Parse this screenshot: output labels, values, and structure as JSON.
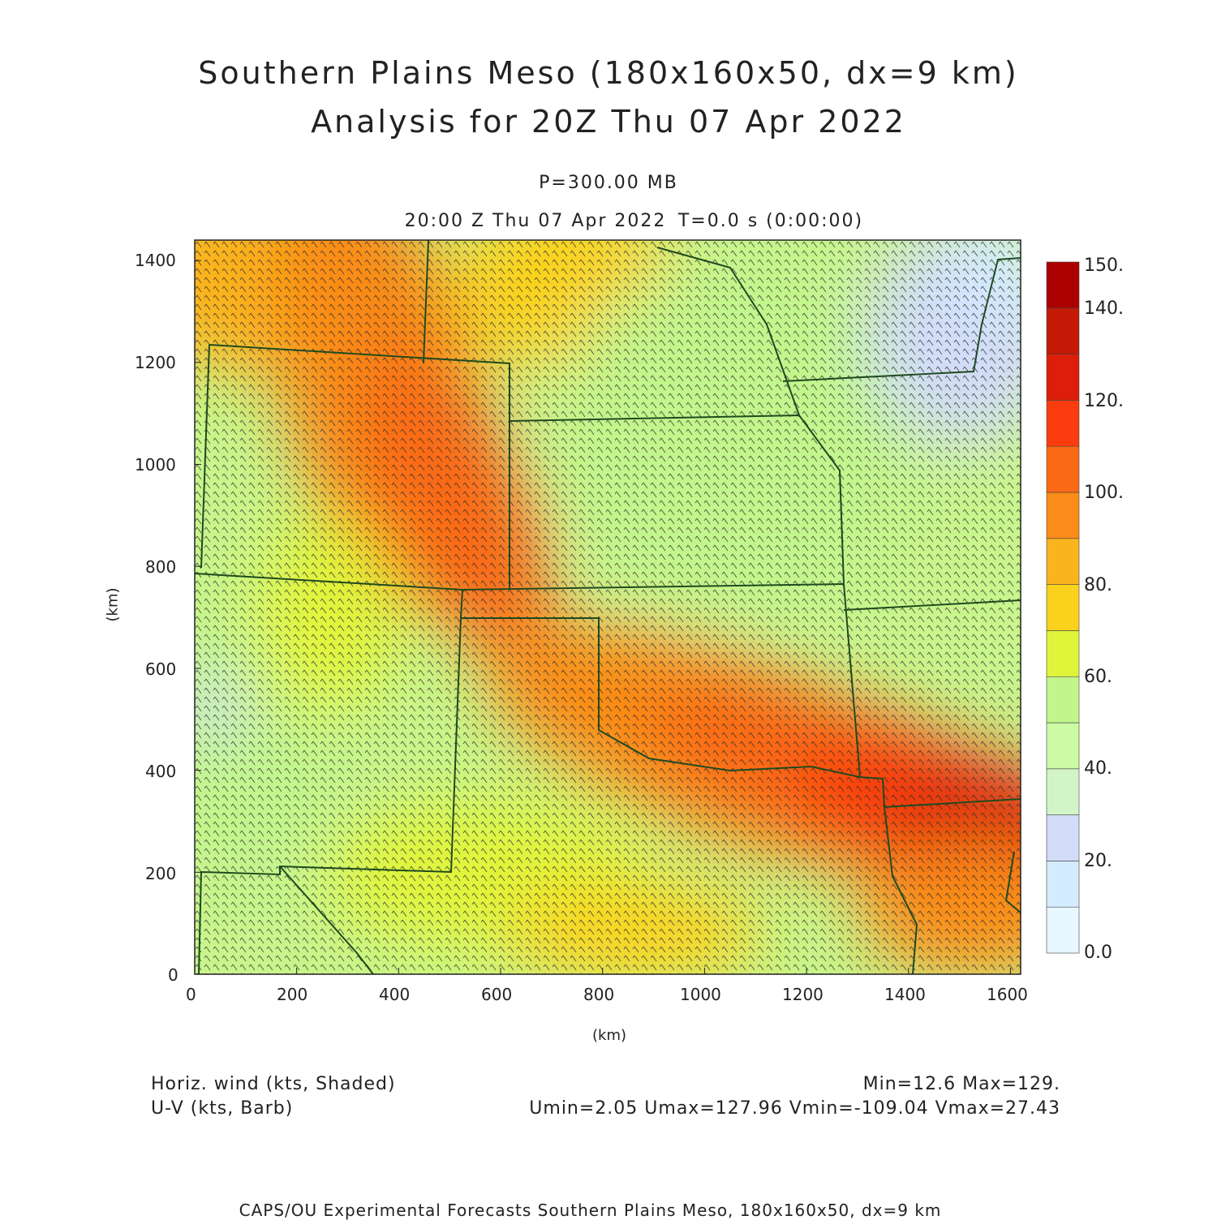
{
  "title": {
    "line1": "Southern Plains Meso (180x160x50, dx=9 km)",
    "line2": "Analysis for 20Z Thu 07 Apr 2022"
  },
  "level_label": "P=300.00 MB",
  "valid_time": "20:00 Z Thu 07 Apr 2022",
  "forecast_time": "T=0.0 s (0:00:00)",
  "axes": {
    "x_label": "(km)",
    "y_label": "(km)",
    "x_ticks": [
      "0",
      "200",
      "400",
      "600",
      "800",
      "1000",
      "1200",
      "1400",
      "1600"
    ],
    "y_ticks": [
      "0",
      "200",
      "400",
      "600",
      "800",
      "1000",
      "1200",
      "1400"
    ],
    "x_range_km": [
      0,
      1620
    ],
    "y_range_km": [
      0,
      1440
    ]
  },
  "colorbar": {
    "labels": [
      "0.0",
      "20.",
      "40.",
      "60.",
      "80.",
      "100.",
      "120.",
      "140.",
      "150."
    ],
    "levels": [
      0,
      10,
      20,
      30,
      40,
      50,
      60,
      70,
      80,
      90,
      100,
      110,
      120,
      130,
      140,
      150
    ],
    "colors": [
      "#e6f7ff",
      "#d4ecff",
      "#d2dcf8",
      "#d2f5c8",
      "#cdfaa5",
      "#c2f58c",
      "#e0f53a",
      "#fad21e",
      "#fab41e",
      "#fa8c19",
      "#fa6914",
      "#fa3c0f",
      "#dc1e0a",
      "#c31905",
      "#aa0000"
    ]
  },
  "legend_left": {
    "line1": "Horiz. wind (kts, Shaded)",
    "line2": "U-V (kts, Barb)"
  },
  "legend_right": {
    "line1": "Min=12.6  Max=129.",
    "line2": "Umin=2.05  Umax=127.96  Vmin=-109.04  Vmax=27.43"
  },
  "footer": "CAPS/OU Experimental Forecasts  Southern Plains Meso, 180x160x50, dx=9 km"
}
